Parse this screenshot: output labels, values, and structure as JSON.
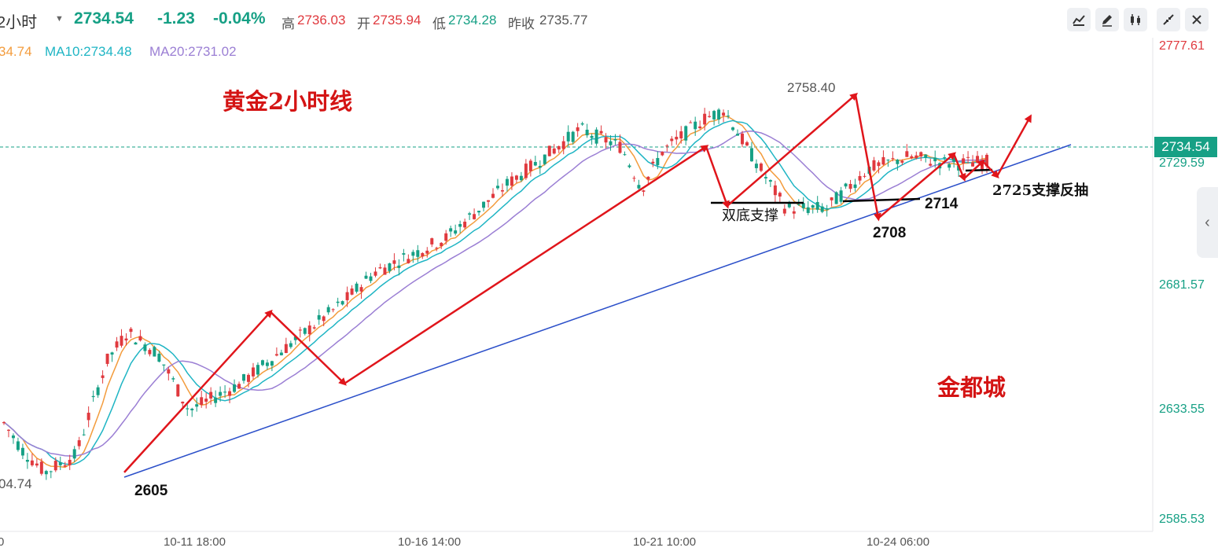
{
  "header": {
    "symbol": "2小时",
    "price": "2734.54",
    "change": "-1.23",
    "change_pct": "-0.04%",
    "high_label": "高",
    "high": "2736.03",
    "open_label": "开",
    "open": "2735.94",
    "low_label": "低",
    "low": "2734.28",
    "prev_close_label": "昨收",
    "prev_close": "2735.77"
  },
  "toolbar": {
    "icons": [
      "indicator-icon",
      "draw-icon",
      "candle-type-icon",
      "collapse-icon",
      "close-icon"
    ]
  },
  "ma_legend": {
    "ma5": "34.74",
    "ma10": "MA10:2734.48",
    "ma20": "MA20:2731.02",
    "colors": {
      "ma5": "#f39c3d",
      "ma10": "#1fb5c4",
      "ma20": "#9b7fd4"
    }
  },
  "colors": {
    "up": "#e0393e",
    "down": "#16a085",
    "trend_line": "#2b4fc9",
    "annotation": "#dd1111"
  },
  "chart_data": {
    "type": "candlestick",
    "title": "黄金2小时线",
    "watermark": "金都城",
    "y_ticks": [
      "2777.61",
      "2729.59",
      "2681.57",
      "2633.55",
      "2585.53"
    ],
    "ylim": [
      2585.53,
      2777.61
    ],
    "x_ticks": [
      "0",
      "10-11 18:00",
      "10-16 14:00",
      "10-21 10:00",
      "10-24 06:00"
    ],
    "current_price": "2734.54",
    "high_marker": "2758.40",
    "low_marker": "04.74",
    "annotations": {
      "low_2605": "2605",
      "double_bottom": "双底支撑",
      "low_2708": "2708",
      "level_2714": "2714",
      "support_2725": "2725支撑反抽"
    },
    "zigzag_prices": [
      2605,
      2670,
      2641,
      2737,
      2713,
      2758,
      2708,
      2734,
      2724,
      2731,
      2725,
      2749
    ]
  }
}
